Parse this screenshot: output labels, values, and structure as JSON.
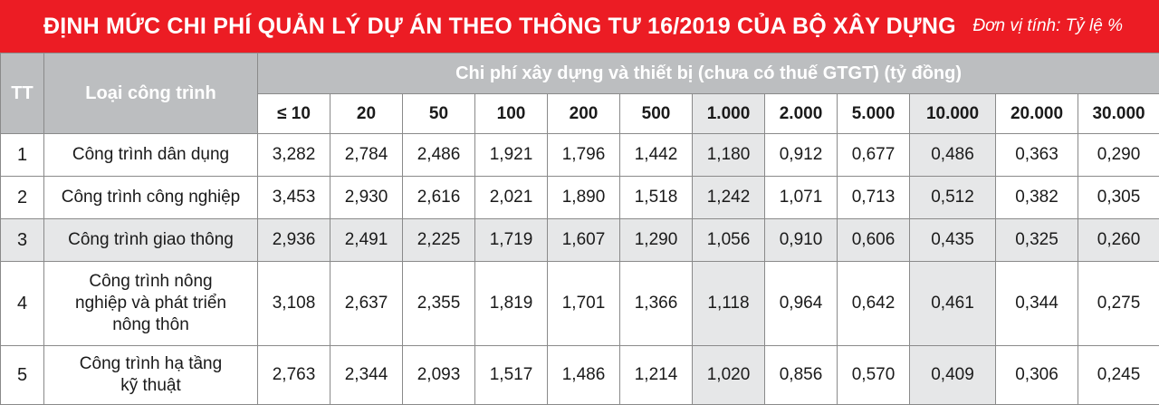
{
  "banner": {
    "title": "ĐỊNH MỨC CHI PHÍ QUẢN LÝ DỰ ÁN THEO THÔNG TƯ 16/2019 CỦA BỘ XÂY DỰNG",
    "unit": "Đơn vị tính: Tỷ lệ %"
  },
  "table": {
    "col_tt": "TT",
    "col_type": "Loại công trình",
    "group_header": "Chi phí xây dựng và thiết bị (chưa có thuế GTGT) (tỷ đồng)",
    "columns": [
      "≤ 10",
      "20",
      "50",
      "100",
      "200",
      "500",
      "1.000",
      "2.000",
      "5.000",
      "10.000",
      "20.000",
      "30.000"
    ],
    "rows": [
      {
        "tt": "1",
        "name": "Công trình dân dụng",
        "values": [
          "3,282",
          "2,784",
          "2,486",
          "1,921",
          "1,796",
          "1,442",
          "1,180",
          "0,912",
          "0,677",
          "0,486",
          "0,363",
          "0,290"
        ]
      },
      {
        "tt": "2",
        "name": "Công trình công nghiệp",
        "values": [
          "3,453",
          "2,930",
          "2,616",
          "2,021",
          "1,890",
          "1,518",
          "1,242",
          "1,071",
          "0,713",
          "0,512",
          "0,382",
          "0,305"
        ]
      },
      {
        "tt": "3",
        "name": "Công trình giao thông",
        "values": [
          "2,936",
          "2,491",
          "2,225",
          "1,719",
          "1,607",
          "1,290",
          "1,056",
          "0,910",
          "0,606",
          "0,435",
          "0,325",
          "0,260"
        ]
      },
      {
        "tt": "4",
        "name_lines": [
          "Công trình nông",
          "nghiệp và phát triển",
          "nông thôn"
        ],
        "values": [
          "3,108",
          "2,637",
          "2,355",
          "1,819",
          "1,701",
          "1,366",
          "1,118",
          "0,964",
          "0,642",
          "0,461",
          "0,344",
          "0,275"
        ]
      },
      {
        "tt": "5",
        "name_lines": [
          "Công trình hạ tầng",
          "kỹ thuật"
        ],
        "values": [
          "2,763",
          "2,344",
          "2,093",
          "1,517",
          "1,486",
          "1,214",
          "1,020",
          "0,856",
          "0,570",
          "0,409",
          "0,306",
          "0,245"
        ]
      }
    ]
  }
}
